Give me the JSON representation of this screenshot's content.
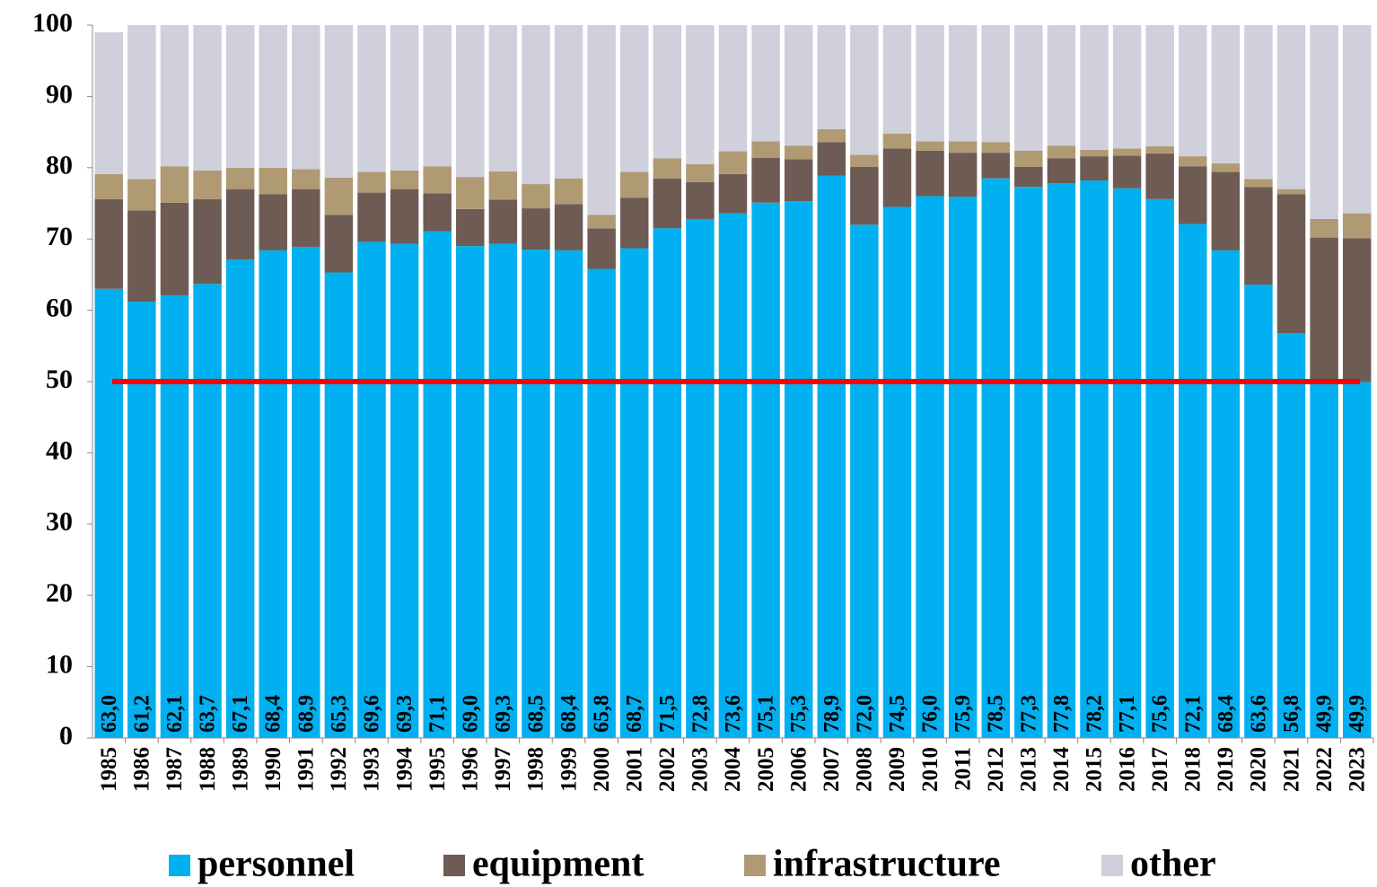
{
  "chart_data": {
    "type": "stacked_bar",
    "categories": [
      "1985",
      "1986",
      "1987",
      "1988",
      "1989",
      "1990",
      "1991",
      "1992",
      "1993",
      "1994",
      "1995",
      "1996",
      "1997",
      "1998",
      "1999",
      "2000",
      "2001",
      "2002",
      "2003",
      "2004",
      "2005",
      "2006",
      "2007",
      "2008",
      "2009",
      "2010",
      "2011",
      "2012",
      "2013",
      "2014",
      "2015",
      "2016",
      "2017",
      "2018",
      "2019",
      "2020",
      "2021",
      "2022",
      "2023"
    ],
    "series": [
      {
        "name": "personnel",
        "color": "#00b0f0",
        "values": [
          63.0,
          61.2,
          62.1,
          63.7,
          67.1,
          68.4,
          68.9,
          65.3,
          69.6,
          69.3,
          71.1,
          69.0,
          69.3,
          68.5,
          68.4,
          65.8,
          68.7,
          71.5,
          72.8,
          73.6,
          75.1,
          75.3,
          78.9,
          72.0,
          74.5,
          76.0,
          75.9,
          78.5,
          77.3,
          77.8,
          78.2,
          77.1,
          75.6,
          72.1,
          68.4,
          63.6,
          56.8,
          49.9,
          49.9
        ],
        "value_labels": [
          "63,0",
          "61,2",
          "62,1",
          "63,7",
          "67,1",
          "68,4",
          "68,9",
          "65,3",
          "69,6",
          "69,3",
          "71,1",
          "69,0",
          "69,3",
          "68,5",
          "68,4",
          "65,8",
          "68,7",
          "71,5",
          "72,8",
          "73,6",
          "75,1",
          "75,3",
          "78,9",
          "72,0",
          "74,5",
          "76,0",
          "75,9",
          "78,5",
          "77,3",
          "77,8",
          "78,2",
          "77,1",
          "75,6",
          "72,1",
          "68,4",
          "63,6",
          "56,8",
          "49,9",
          "49,9"
        ]
      },
      {
        "name": "equipment",
        "color": "#6e5c54",
        "values": [
          12.6,
          12.8,
          13.0,
          11.9,
          9.9,
          7.9,
          8.1,
          8.1,
          6.9,
          7.7,
          5.3,
          5.2,
          6.2,
          5.8,
          6.5,
          5.7,
          7.1,
          7.0,
          5.2,
          5.5,
          6.3,
          5.9,
          4.7,
          8.1,
          8.2,
          6.4,
          6.2,
          3.6,
          2.8,
          3.5,
          3.4,
          4.6,
          6.4,
          8.1,
          11.0,
          13.7,
          19.5,
          20.3,
          20.2
        ]
      },
      {
        "name": "infrastructure",
        "color": "#b09a74",
        "values": [
          3.5,
          4.4,
          5.1,
          4.0,
          3.0,
          3.7,
          2.8,
          5.2,
          2.9,
          2.6,
          3.8,
          4.5,
          4.0,
          3.4,
          3.6,
          1.9,
          3.6,
          2.8,
          2.5,
          3.2,
          2.3,
          1.9,
          1.8,
          1.7,
          2.1,
          1.3,
          1.6,
          1.5,
          2.3,
          1.8,
          0.9,
          1.0,
          1.0,
          1.4,
          1.2,
          1.1,
          0.7,
          2.6,
          3.5
        ]
      },
      {
        "name": "other",
        "color": "#cfd0dc",
        "values": [
          19.9,
          21.6,
          19.8,
          20.4,
          20.0,
          20.0,
          20.2,
          21.4,
          20.6,
          20.4,
          19.8,
          21.3,
          20.5,
          22.3,
          21.5,
          26.6,
          20.6,
          18.7,
          19.5,
          17.7,
          16.3,
          16.9,
          14.6,
          18.2,
          15.2,
          16.3,
          16.3,
          16.4,
          17.6,
          16.9,
          17.5,
          17.3,
          17.0,
          18.4,
          19.4,
          21.6,
          23.0,
          27.2,
          26.4
        ]
      }
    ],
    "ylim": [
      0,
      100
    ],
    "yticks": [
      0,
      10,
      20,
      30,
      40,
      50,
      60,
      70,
      80,
      90,
      100
    ],
    "reference_line": {
      "value": 50,
      "color": "#ff0000"
    },
    "legend": "bottom"
  }
}
